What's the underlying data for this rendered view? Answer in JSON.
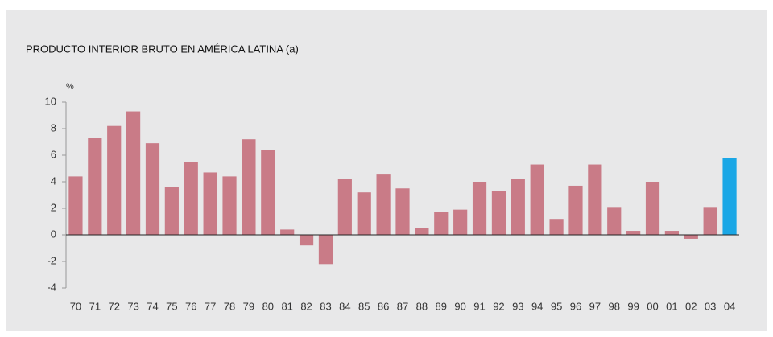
{
  "chart_data": {
    "type": "bar",
    "title": "PRODUCTO INTERIOR BRUTO EN AMÉRICA LATINA (a)",
    "y_label": "%",
    "categories": [
      "70",
      "71",
      "72",
      "73",
      "74",
      "75",
      "76",
      "77",
      "78",
      "79",
      "80",
      "81",
      "82",
      "83",
      "84",
      "85",
      "86",
      "87",
      "88",
      "89",
      "90",
      "91",
      "92",
      "93",
      "94",
      "95",
      "96",
      "97",
      "98",
      "99",
      "00",
      "01",
      "02",
      "03",
      "04"
    ],
    "values": [
      4.4,
      7.3,
      8.2,
      9.3,
      6.9,
      3.6,
      5.5,
      4.7,
      4.4,
      7.2,
      6.4,
      0.4,
      -0.8,
      -2.2,
      4.2,
      3.2,
      4.6,
      3.5,
      0.5,
      1.7,
      1.9,
      4.0,
      3.3,
      4.2,
      5.3,
      1.2,
      3.7,
      5.3,
      2.1,
      0.3,
      4.0,
      0.3,
      -0.3,
      2.1,
      5.8
    ],
    "colors": [
      "#c97b87",
      "#c97b87",
      "#c97b87",
      "#c97b87",
      "#c97b87",
      "#c97b87",
      "#c97b87",
      "#c97b87",
      "#c97b87",
      "#c97b87",
      "#c97b87",
      "#c97b87",
      "#c97b87",
      "#c97b87",
      "#c97b87",
      "#c97b87",
      "#c97b87",
      "#c97b87",
      "#c97b87",
      "#c97b87",
      "#c97b87",
      "#c97b87",
      "#c97b87",
      "#c97b87",
      "#c97b87",
      "#c97b87",
      "#c97b87",
      "#c97b87",
      "#c97b87",
      "#c97b87",
      "#c97b87",
      "#c97b87",
      "#c97b87",
      "#c97b87",
      "#1aa7e6"
    ],
    "ylim": [
      -4,
      10
    ],
    "yticks": [
      -4,
      -2,
      0,
      2,
      4,
      6,
      8,
      10
    ],
    "grid": false
  }
}
